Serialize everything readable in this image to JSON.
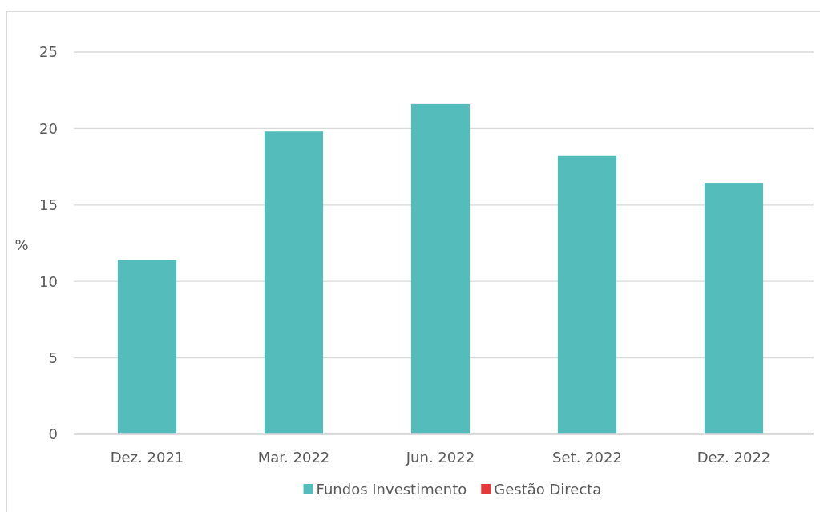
{
  "chart_data": {
    "type": "bar",
    "ylabel": "%",
    "categories": [
      "Dez. 2021",
      "Mar. 2022",
      "Jun. 2022",
      "Set. 2022",
      "Dez. 2022"
    ],
    "series": [
      {
        "name": "Fundos Investimento",
        "color": "#54bcbb",
        "values": [
          11.4,
          19.8,
          21.6,
          18.2,
          16.4
        ]
      },
      {
        "name": "Gestão Directa",
        "color": "#e8393a",
        "values": [
          null,
          null,
          null,
          null,
          null
        ]
      }
    ],
    "stacked": true,
    "ylim": [
      0,
      25
    ],
    "yticks": [
      0,
      5,
      10,
      15,
      20,
      25
    ],
    "grid": "y",
    "legend": "bottom"
  }
}
